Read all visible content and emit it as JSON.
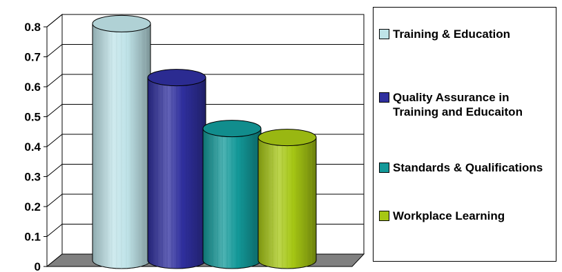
{
  "chart_data": {
    "type": "bar",
    "style": "3d-cylinder",
    "title": "",
    "xlabel": "",
    "ylabel": "",
    "ylim": [
      0,
      0.8
    ],
    "yticks": [
      "0",
      "0.1",
      "0.2",
      "0.3",
      "0.4",
      "0.5",
      "0.6",
      "0.7",
      "0.8"
    ],
    "grid": true,
    "legend_position": "right",
    "series": [
      {
        "name": "Training & Education",
        "value": 0.79,
        "color": "#BFE3E8"
      },
      {
        "name": "Quality Assurance in Training and Educaiton",
        "value": 0.61,
        "color": "#2F2F9E"
      },
      {
        "name": "Standards & Qualifications",
        "value": 0.44,
        "color": "#139999"
      },
      {
        "name": "Workplace Learning",
        "value": 0.41,
        "color": "#A6C714"
      }
    ]
  }
}
